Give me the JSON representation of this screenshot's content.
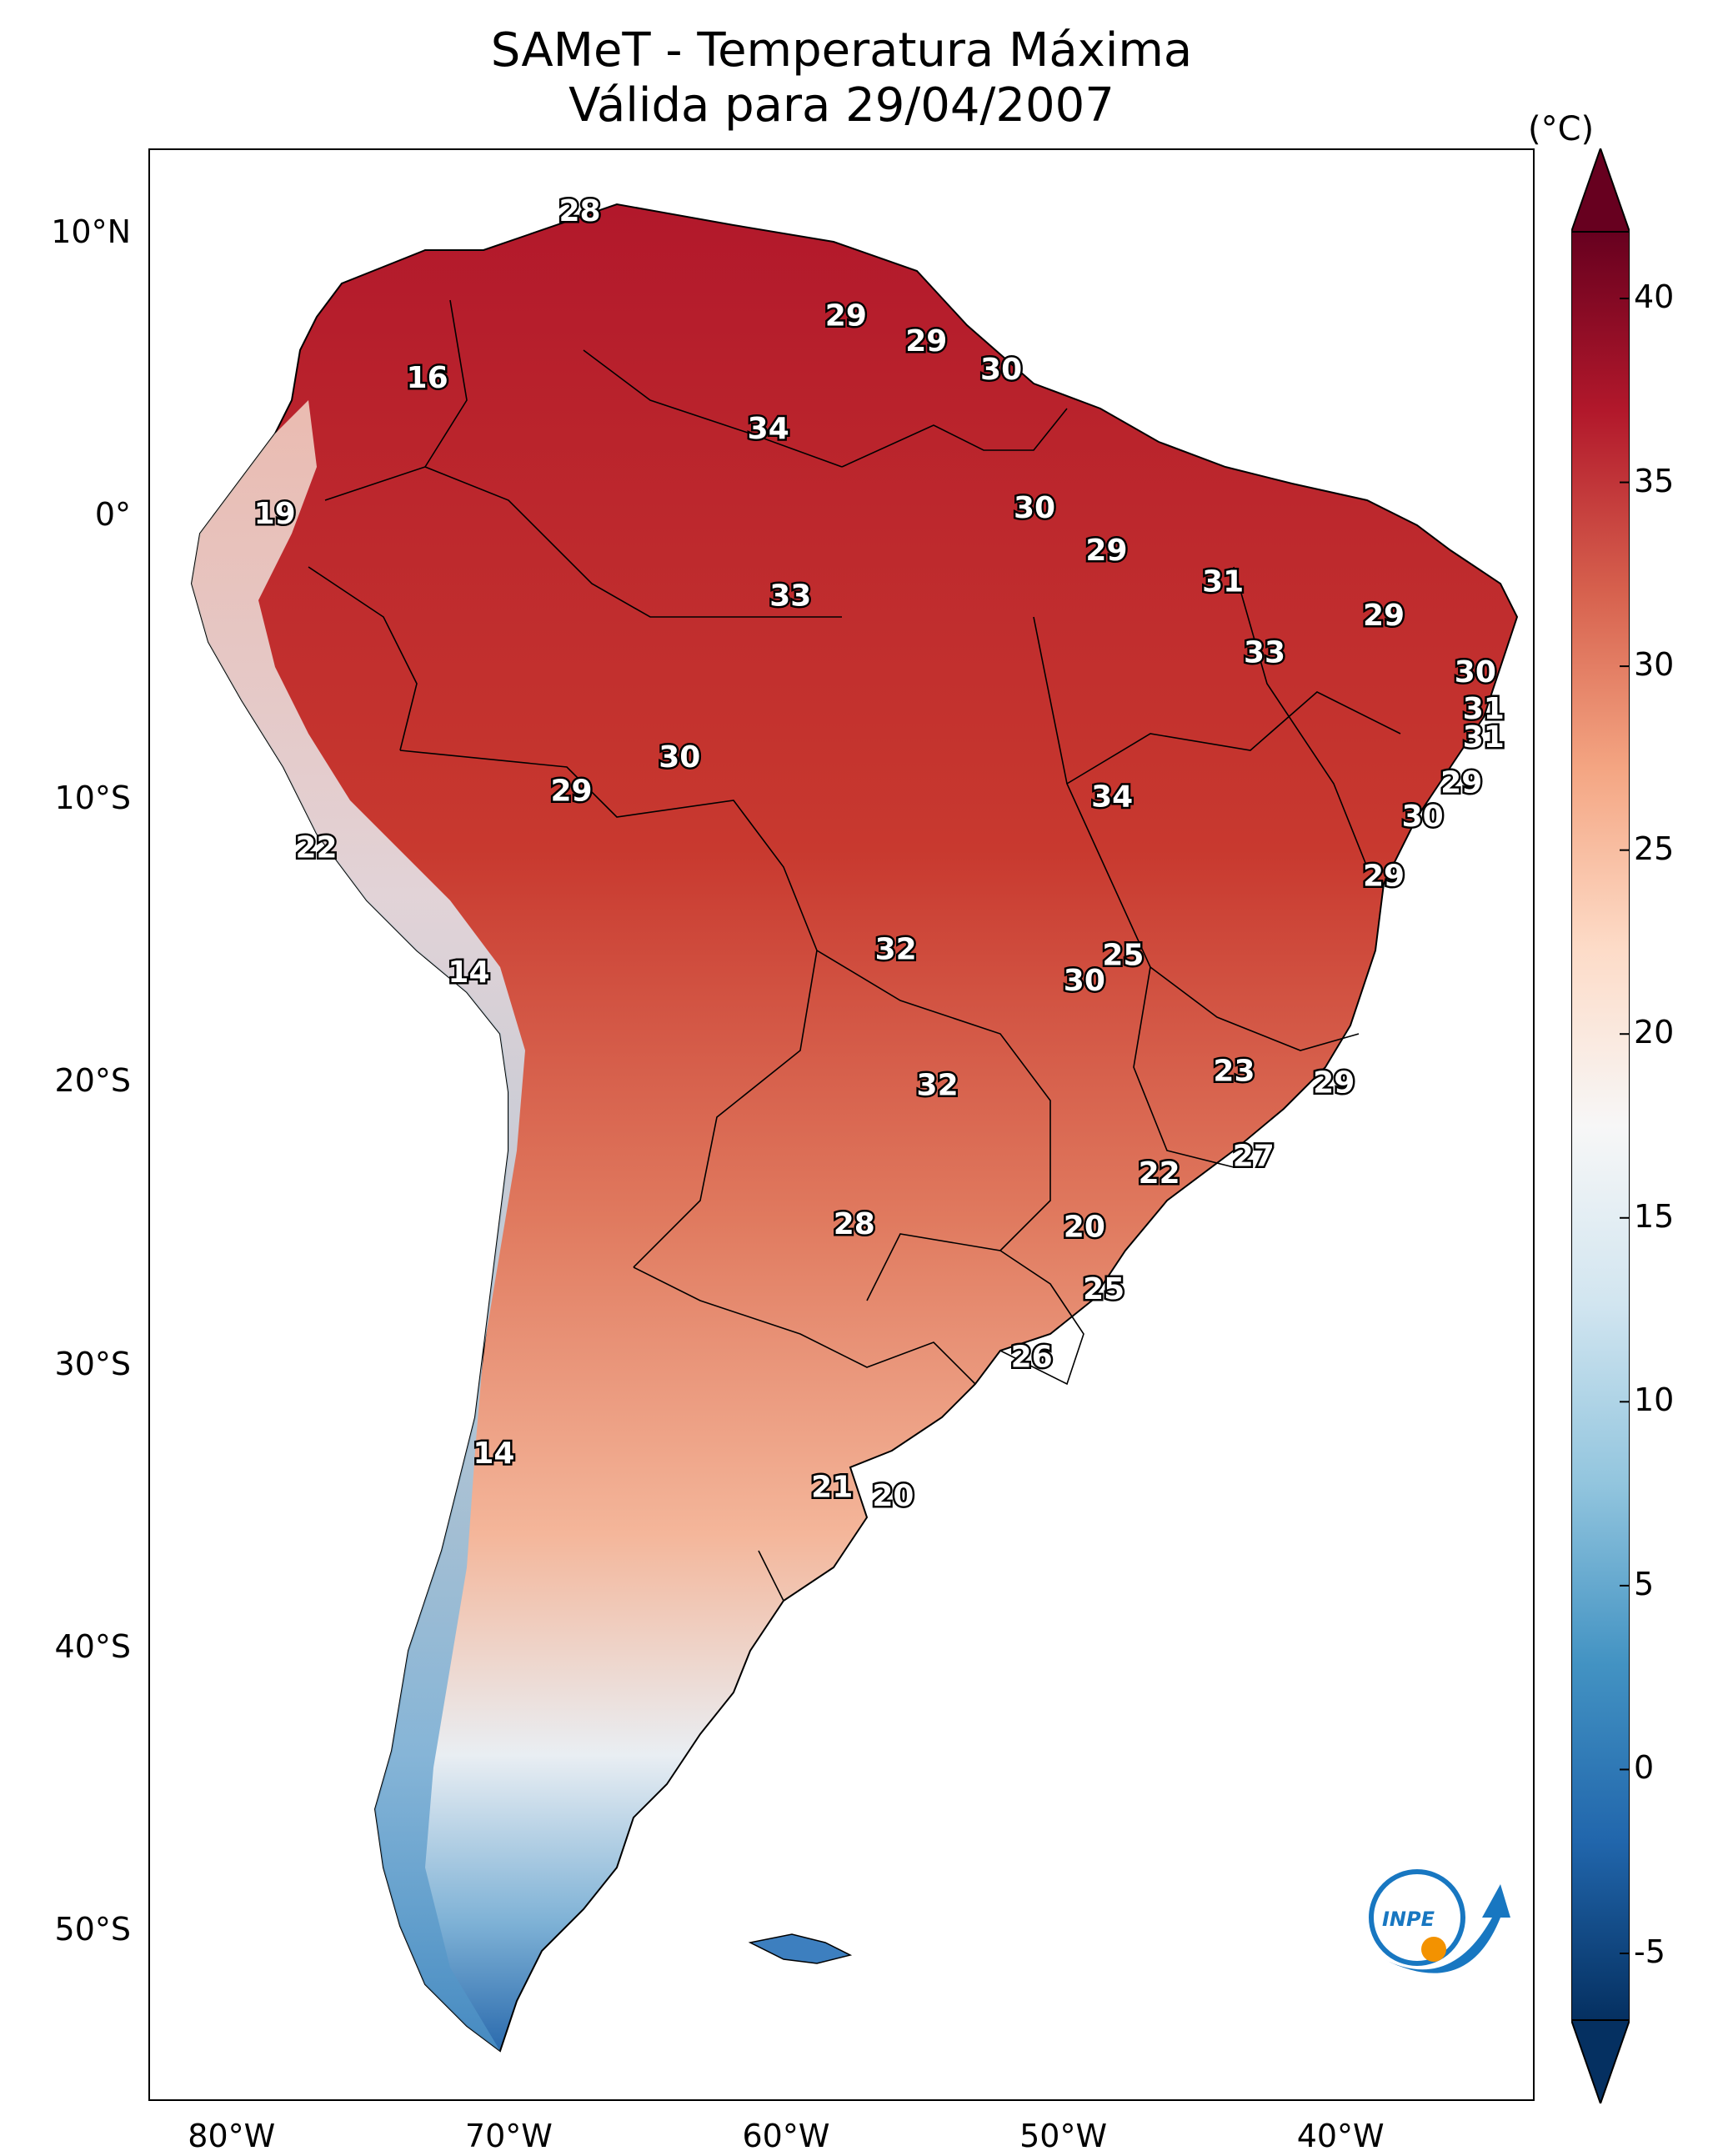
{
  "title": {
    "line1": "SAMeT - Temperatura Máxima",
    "line2": "Válida para 29/04/2007"
  },
  "map": {
    "lon_range": [
      -83,
      -33
    ],
    "lat_range": [
      -56,
      13
    ],
    "lat_ticks": [
      {
        "value": 10,
        "label": "10°N"
      },
      {
        "value": 0,
        "label": "0°"
      },
      {
        "value": -10,
        "label": "10°S"
      },
      {
        "value": -20,
        "label": "20°S"
      },
      {
        "value": -30,
        "label": "30°S"
      },
      {
        "value": -40,
        "label": "40°S"
      },
      {
        "value": -50,
        "label": "50°S"
      }
    ],
    "lon_ticks": [
      {
        "value": -80,
        "label": "80°W"
      },
      {
        "value": -70,
        "label": "70°W"
      },
      {
        "value": -60,
        "label": "60°W"
      },
      {
        "value": -50,
        "label": "50°W"
      },
      {
        "value": -40,
        "label": "40°W"
      }
    ],
    "city_values": [
      {
        "lon": -67.5,
        "lat": 10.5,
        "value": "28"
      },
      {
        "lon": -57.9,
        "lat": 6.8,
        "value": "29"
      },
      {
        "lon": -55.0,
        "lat": 5.9,
        "value": "29"
      },
      {
        "lon": -52.3,
        "lat": 4.9,
        "value": "30"
      },
      {
        "lon": -73.0,
        "lat": 4.6,
        "value": "16"
      },
      {
        "lon": -60.7,
        "lat": 2.8,
        "value": "34"
      },
      {
        "lon": -78.5,
        "lat": -0.2,
        "value": "19"
      },
      {
        "lon": -51.1,
        "lat": 0.0,
        "value": "30"
      },
      {
        "lon": -48.5,
        "lat": -1.5,
        "value": "29"
      },
      {
        "lon": -44.3,
        "lat": -2.6,
        "value": "31"
      },
      {
        "lon": -59.9,
        "lat": -3.1,
        "value": "33"
      },
      {
        "lon": -38.5,
        "lat": -3.8,
        "value": "29"
      },
      {
        "lon": -42.8,
        "lat": -5.1,
        "value": "33"
      },
      {
        "lon": -35.2,
        "lat": -5.8,
        "value": "30"
      },
      {
        "lon": -34.9,
        "lat": -7.1,
        "value": "31"
      },
      {
        "lon": -34.9,
        "lat": -8.1,
        "value": "31"
      },
      {
        "lon": -63.9,
        "lat": -8.8,
        "value": "30"
      },
      {
        "lon": -67.8,
        "lat": -10.0,
        "value": "29"
      },
      {
        "lon": -35.7,
        "lat": -9.7,
        "value": "29"
      },
      {
        "lon": -48.3,
        "lat": -10.2,
        "value": "34"
      },
      {
        "lon": -37.1,
        "lat": -10.9,
        "value": "30"
      },
      {
        "lon": -77.0,
        "lat": -12.0,
        "value": "22"
      },
      {
        "lon": -38.5,
        "lat": -13.0,
        "value": "29"
      },
      {
        "lon": -56.1,
        "lat": -15.6,
        "value": "32"
      },
      {
        "lon": -47.9,
        "lat": -15.8,
        "value": "25"
      },
      {
        "lon": -49.3,
        "lat": -16.7,
        "value": "30"
      },
      {
        "lon": -71.5,
        "lat": -16.4,
        "value": "14"
      },
      {
        "lon": -43.9,
        "lat": -19.9,
        "value": "23"
      },
      {
        "lon": -54.6,
        "lat": -20.4,
        "value": "32"
      },
      {
        "lon": -40.3,
        "lat": -20.3,
        "value": "29"
      },
      {
        "lon": -43.2,
        "lat": -22.9,
        "value": "27"
      },
      {
        "lon": -46.6,
        "lat": -23.5,
        "value": "22"
      },
      {
        "lon": -57.6,
        "lat": -25.3,
        "value": "28"
      },
      {
        "lon": -49.3,
        "lat": -25.4,
        "value": "20"
      },
      {
        "lon": -48.6,
        "lat": -27.6,
        "value": "25"
      },
      {
        "lon": -51.2,
        "lat": -30.0,
        "value": "26"
      },
      {
        "lon": -70.6,
        "lat": -33.4,
        "value": "14"
      },
      {
        "lon": -58.4,
        "lat": -34.6,
        "value": "21"
      },
      {
        "lon": -56.2,
        "lat": -34.9,
        "value": "20"
      }
    ],
    "logo_text": "INPE"
  },
  "colorbar": {
    "unit": "(°C)",
    "min": -5,
    "max": 40,
    "ticks": [
      "40",
      "35",
      "30",
      "25",
      "20",
      "15",
      "10",
      "5",
      "0",
      "-5"
    ],
    "colors": [
      "#053061",
      "#2166ac",
      "#4393c3",
      "#92c5de",
      "#d1e5f0",
      "#f7f7f7",
      "#fddbc7",
      "#f4a582",
      "#d6604d",
      "#b2182b",
      "#67001f"
    ]
  }
}
